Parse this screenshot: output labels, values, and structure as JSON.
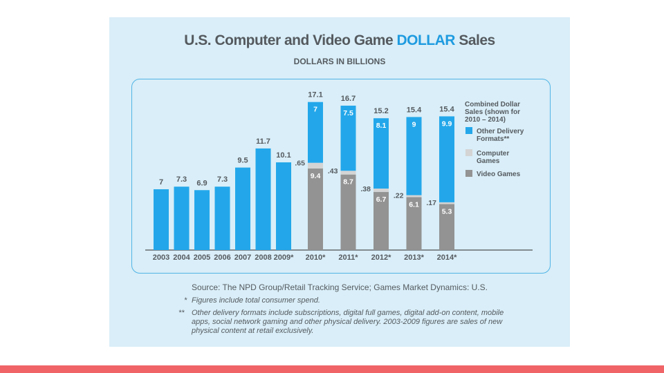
{
  "slide": {
    "accent_bar_color": "#f06468",
    "panel_color": "#d9eef8"
  },
  "title": {
    "part1": "U.S. Computer and Video Game ",
    "highlight": "DOLLAR",
    "part2": " Sales"
  },
  "subtitle": "DOLLARS IN BILLIONS",
  "source": "Source: The NPD Group/Retail Tracking Service; Games Market Dynamics: U.S.",
  "notes": [
    {
      "mark": "*",
      "text": "Figures include total consumer spend."
    },
    {
      "mark": "**",
      "text": "Other delivery formats include subscriptions, digital full games, digital add-on content, mobile apps, social network gaming and other physical delivery. 2003-2009 figures are sales of new physical content at retail exclusively."
    }
  ],
  "chart_data": {
    "type": "bar",
    "unit": "DOLLARS IN BILLIONS",
    "colors": {
      "other": "#23a7ea",
      "computer": "#d4d4d4",
      "video": "#939393",
      "total_label": "#555a5f"
    },
    "single": {
      "categories": [
        "2003",
        "2004",
        "2005",
        "2006",
        "2007",
        "2008",
        "2009*"
      ],
      "values": [
        7,
        7.3,
        6.9,
        7.3,
        9.5,
        11.7,
        10.1
      ],
      "labels": [
        "7",
        "7.3",
        "6.9",
        "7.3",
        "9.5",
        "11.7",
        "10.1"
      ]
    },
    "stacked": {
      "categories": [
        "2010*",
        "2011*",
        "2012*",
        "2013*",
        "2014*"
      ],
      "totals": [
        17.1,
        16.7,
        15.2,
        15.4,
        15.4
      ],
      "total_labels": [
        "17.1",
        "16.7",
        "15.2",
        "15.4",
        "15.4"
      ],
      "series": [
        {
          "key": "video",
          "values": [
            9.4,
            8.7,
            6.7,
            6.1,
            5.3
          ],
          "labels": [
            "9.4",
            "8.7",
            "6.7",
            "6.1",
            "5.3"
          ]
        },
        {
          "key": "computer",
          "values": [
            0.65,
            0.43,
            0.38,
            0.22,
            0.17
          ],
          "labels": [
            ".65",
            ".43",
            ".38",
            ".22",
            ".17"
          ]
        },
        {
          "key": "other",
          "values": [
            7,
            7.5,
            8.1,
            9,
            9.9
          ],
          "labels": [
            "7",
            "7.5",
            "8.1",
            "9",
            "9.9"
          ]
        }
      ]
    },
    "legend": {
      "position": "top-right",
      "title": [
        "Combined Dollar",
        "Sales (shown for",
        "2010 – 2014)"
      ],
      "items": [
        {
          "key": "other",
          "lines": [
            "Other Delivery",
            "Formats**"
          ]
        },
        {
          "key": "computer",
          "lines": [
            "Computer",
            "Games"
          ]
        },
        {
          "key": "video",
          "lines": [
            "Video Games"
          ]
        }
      ]
    }
  }
}
